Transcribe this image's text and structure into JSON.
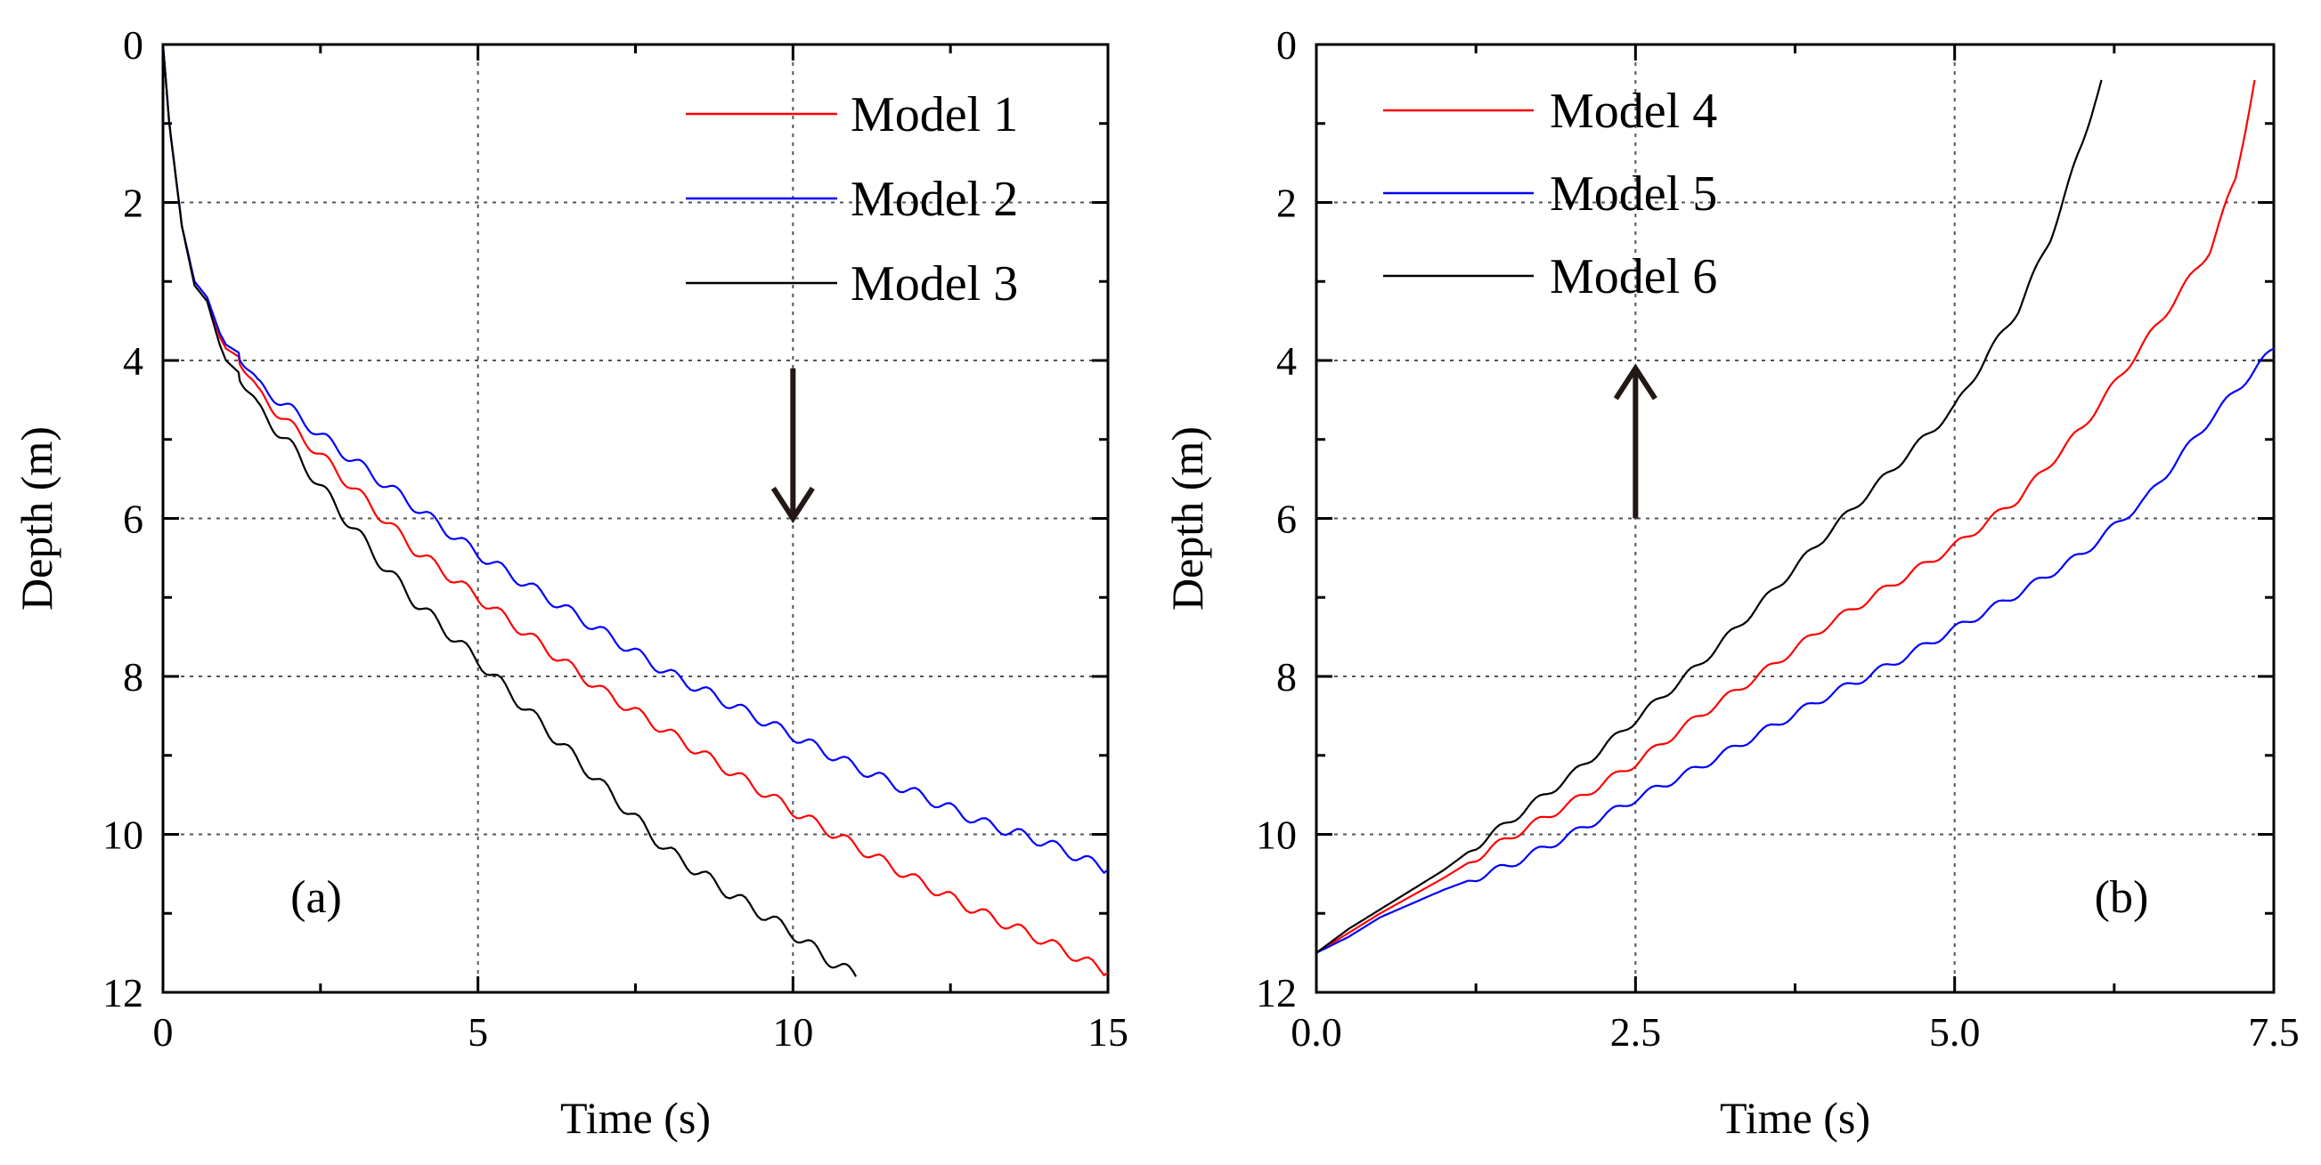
{
  "chart_data": [
    {
      "type": "line",
      "panel_tag": "(a)",
      "xlabel": "Time (s)",
      "ylabel": "Depth (m)",
      "xlim": [
        0,
        15
      ],
      "ylim": [
        0,
        12
      ],
      "y_inverted": true,
      "xticks": [
        "0",
        "5",
        "10",
        "15"
      ],
      "yticks": [
        "0",
        "2",
        "4",
        "6",
        "8",
        "10",
        "12"
      ],
      "grid": true,
      "legend_position": "top-right",
      "arrow": {
        "direction": "down",
        "x": 10,
        "y_from": 4.1,
        "y_to": 6.0
      },
      "series": [
        {
          "name": "Model 1",
          "color": "#ff0000",
          "x": [
            0,
            0.1,
            0.3,
            0.5,
            0.7,
            0.9,
            1.0,
            1.2,
            1.5,
            2.0,
            2.5,
            3.0,
            3.5,
            4.0,
            5.0,
            6.0,
            7.0,
            8.0,
            9.0,
            10.0,
            11.0,
            12.0,
            13.0,
            14.0,
            15.0
          ],
          "y": [
            0,
            1.0,
            2.3,
            3.0,
            3.2,
            3.7,
            3.85,
            3.95,
            4.4,
            4.8,
            5.2,
            5.6,
            6.0,
            6.4,
            7.0,
            7.6,
            8.2,
            8.7,
            9.2,
            9.7,
            10.15,
            10.6,
            11.0,
            11.35,
            11.75
          ],
          "wiggle": 0.07
        },
        {
          "name": "Model 2",
          "color": "#0000ff",
          "x": [
            0,
            0.1,
            0.3,
            0.5,
            0.7,
            0.9,
            1.0,
            1.2,
            1.5,
            2.0,
            2.5,
            3.0,
            3.5,
            4.0,
            5.0,
            6.0,
            7.0,
            8.0,
            9.0,
            10.0,
            11.0,
            12.0,
            13.0,
            14.0,
            15.0
          ],
          "y": [
            0,
            1.0,
            2.3,
            3.0,
            3.2,
            3.65,
            3.8,
            3.9,
            4.3,
            4.6,
            4.95,
            5.25,
            5.55,
            5.85,
            6.45,
            6.95,
            7.45,
            7.95,
            8.35,
            8.75,
            9.15,
            9.5,
            9.85,
            10.1,
            10.45
          ],
          "wiggle": 0.07
        },
        {
          "name": "Model 3",
          "color": "#000000",
          "x": [
            0,
            0.1,
            0.3,
            0.5,
            0.7,
            0.9,
            1.0,
            1.2,
            1.5,
            2.0,
            2.5,
            3.0,
            3.5,
            4.0,
            5.0,
            6.0,
            7.0,
            8.0,
            9.0,
            10.0,
            10.5,
            11.0
          ],
          "y": [
            0,
            1.0,
            2.3,
            3.05,
            3.25,
            3.8,
            4.0,
            4.15,
            4.6,
            5.05,
            5.6,
            6.1,
            6.6,
            7.05,
            7.8,
            8.6,
            9.4,
            10.2,
            10.75,
            11.25,
            11.55,
            11.8
          ],
          "wiggle": 0.08
        }
      ]
    },
    {
      "type": "line",
      "panel_tag": "(b)",
      "xlabel": "Time (s)",
      "ylabel": "Depth (m)",
      "xlim": [
        0,
        7.5
      ],
      "ylim": [
        0,
        12
      ],
      "y_inverted": true,
      "xticks": [
        "0.0",
        "2.5",
        "5.0",
        "7.5"
      ],
      "yticks": [
        "0",
        "2",
        "4",
        "6",
        "8",
        "10",
        "12"
      ],
      "grid": true,
      "legend_position": "top-left",
      "arrow": {
        "direction": "up",
        "x": 2.5,
        "y_from": 6.0,
        "y_to": 4.1
      },
      "series": [
        {
          "name": "Model 4",
          "color": "#ff0000",
          "x": [
            0,
            0.25,
            0.5,
            1.0,
            1.5,
            2.0,
            2.5,
            3.0,
            3.5,
            4.0,
            4.5,
            5.0,
            5.5,
            6.0,
            6.5,
            7.0,
            7.2,
            7.35
          ],
          "y": [
            11.5,
            11.25,
            11.0,
            10.55,
            10.05,
            9.6,
            9.1,
            8.5,
            7.95,
            7.35,
            6.85,
            6.35,
            5.75,
            4.85,
            3.75,
            2.6,
            1.7,
            0.45
          ],
          "wiggle": 0.05
        },
        {
          "name": "Model 5",
          "color": "#0000ff",
          "x": [
            0,
            0.25,
            0.5,
            1.0,
            1.5,
            2.0,
            2.5,
            3.0,
            3.5,
            4.0,
            4.5,
            5.0,
            5.5,
            6.0,
            6.5,
            7.0,
            7.5
          ],
          "y": [
            11.5,
            11.3,
            11.05,
            10.7,
            10.4,
            10.0,
            9.55,
            9.15,
            8.7,
            8.25,
            7.85,
            7.4,
            6.95,
            6.45,
            5.75,
            4.75,
            3.85
          ],
          "wiggle": 0.05
        },
        {
          "name": "Model 6",
          "color": "#000000",
          "x": [
            0,
            0.25,
            0.5,
            1.0,
            1.5,
            2.0,
            2.5,
            3.0,
            3.5,
            4.0,
            4.5,
            5.0,
            5.25,
            5.5,
            5.75,
            6.0,
            6.1,
            6.15
          ],
          "y": [
            11.5,
            11.2,
            10.95,
            10.45,
            9.85,
            9.25,
            8.55,
            7.85,
            7.05,
            6.2,
            5.4,
            4.6,
            3.95,
            3.35,
            2.45,
            1.25,
            0.7,
            0.45
          ],
          "wiggle": 0.05
        }
      ]
    }
  ]
}
